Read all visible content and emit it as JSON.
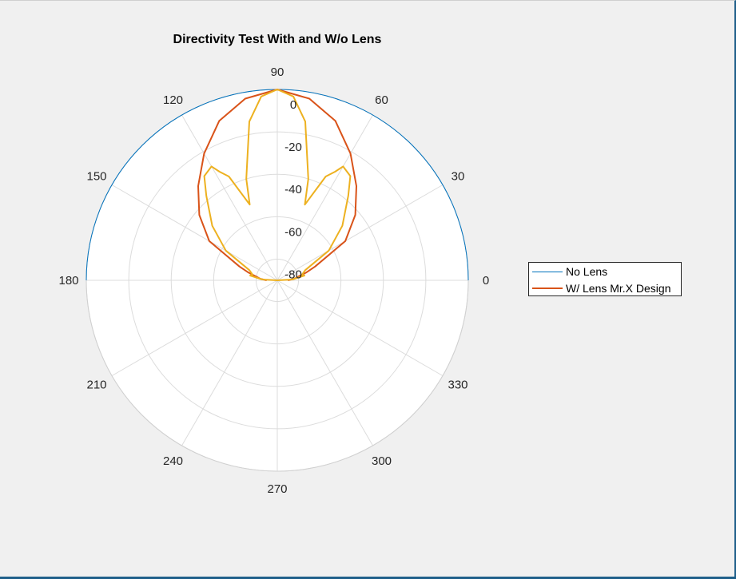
{
  "chart_data": {
    "type": "line",
    "subtype": "polar",
    "title": "Directivity Test With and W/o Lens",
    "theta_unit": "degrees",
    "r_axis": {
      "range": [
        -90,
        0
      ],
      "ticks": [
        0,
        -20,
        -40,
        -60,
        -80
      ],
      "tick_labels": [
        "0",
        "-20",
        "-40",
        "-60",
        "-80"
      ]
    },
    "theta_ticks": [
      0,
      30,
      60,
      90,
      120,
      150,
      180,
      210,
      240,
      270,
      300,
      330
    ],
    "theta_tick_labels": [
      "0",
      "30",
      "60",
      "90",
      "120",
      "150",
      "180",
      "210",
      "240",
      "270",
      "300",
      "330"
    ],
    "grid": true,
    "legend_position": "right",
    "series": [
      {
        "name": "No Lens",
        "color": "#0072bd",
        "theta": [
          0,
          180
        ],
        "r": [
          0,
          0
        ],
        "arc": true
      },
      {
        "name": "W/ Lens Mr.X Design",
        "color": "#d95319",
        "theta": [
          0,
          5,
          10,
          15,
          20,
          30,
          40,
          50,
          60,
          70,
          80,
          90,
          100,
          110,
          120,
          130,
          140,
          150,
          160,
          165,
          170,
          175,
          180
        ],
        "r": [
          -85,
          -82,
          -80,
          -76,
          -71,
          -53,
          -42,
          -32,
          -21,
          -10,
          -3,
          0,
          -3,
          -10,
          -21,
          -32,
          -42,
          -53,
          -71,
          -76,
          -80,
          -82,
          -85
        ]
      },
      {
        "name": "",
        "color": "#edb120",
        "theta": [
          0,
          3,
          10,
          13,
          20,
          30,
          40,
          50,
          55,
          60,
          62,
          65,
          70,
          73,
          80,
          85,
          90,
          95,
          100,
          107,
          110,
          115,
          118,
          120,
          125,
          130,
          140,
          150,
          160,
          167,
          170,
          177,
          180
        ],
        "r": [
          -90,
          -83,
          -77,
          -78,
          -76,
          -62,
          -50,
          -38,
          -30,
          -28,
          -32,
          -36,
          -52,
          -40,
          -14,
          -3,
          0,
          -3,
          -14,
          -40,
          -52,
          -36,
          -32,
          -28,
          -30,
          -38,
          -50,
          -62,
          -76,
          -78,
          -77,
          -83,
          -90
        ]
      }
    ]
  }
}
